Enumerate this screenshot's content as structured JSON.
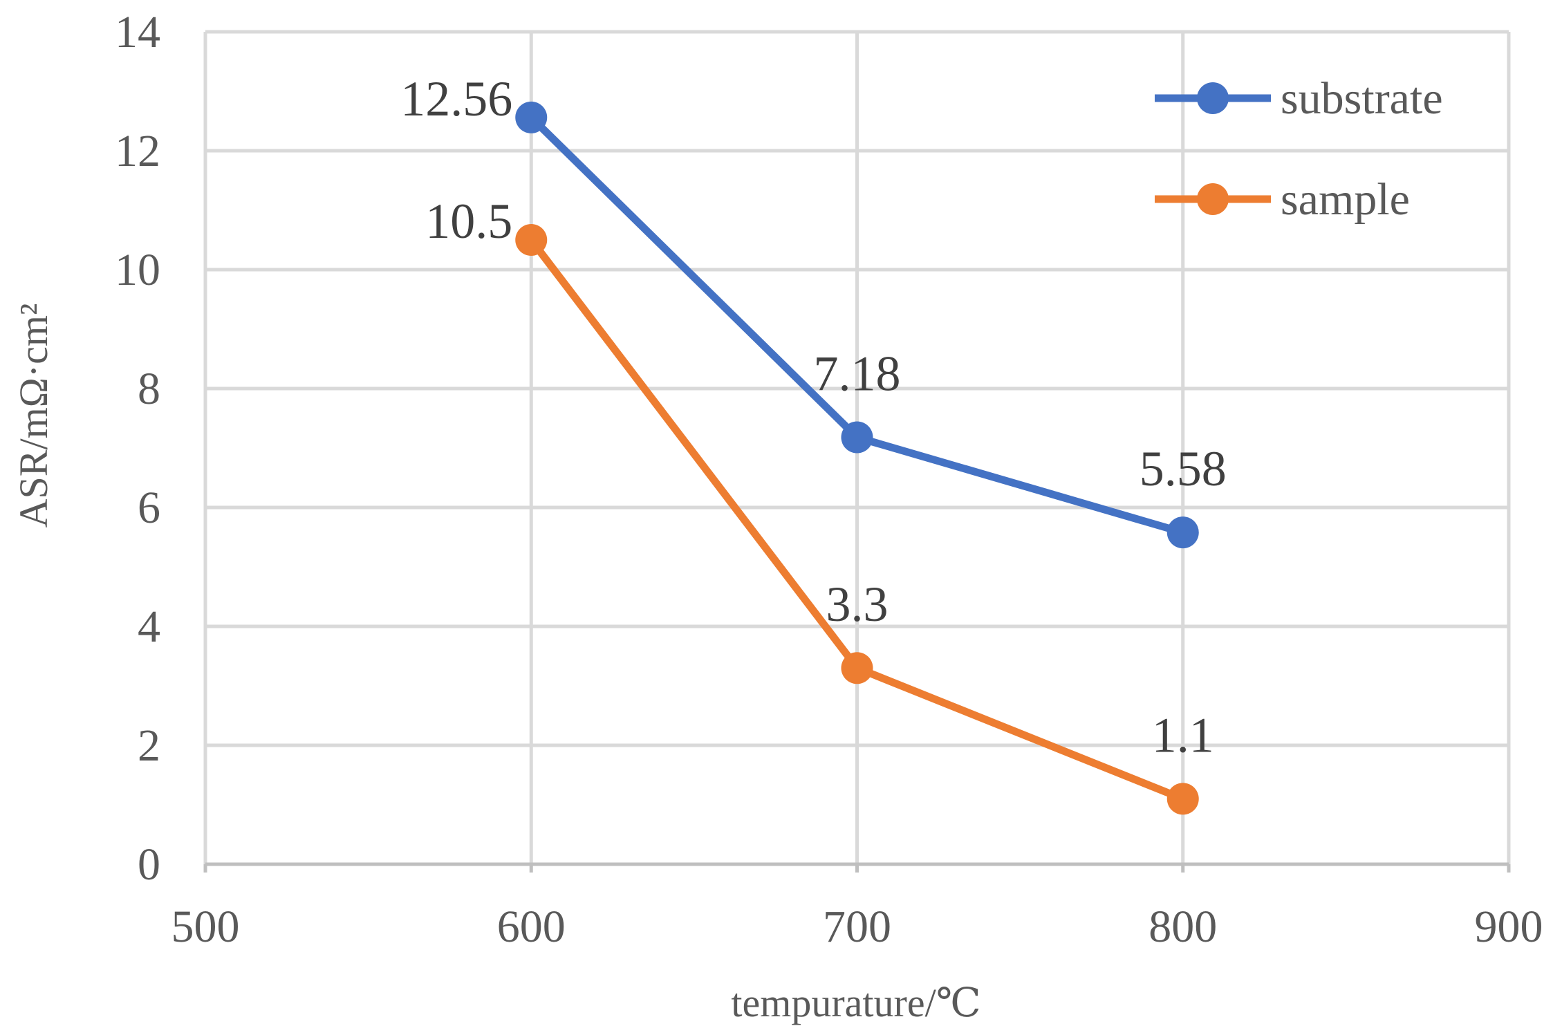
{
  "chart_data": {
    "type": "scatter",
    "title": "",
    "xlabel": "tempurature/℃",
    "ylabel": "ASR/mΩ·cm²",
    "xlim": [
      500,
      900
    ],
    "ylim": [
      0,
      14
    ],
    "xticks": [
      500,
      600,
      700,
      800,
      900
    ],
    "yticks": [
      0,
      2,
      4,
      6,
      8,
      10,
      12,
      14
    ],
    "grid": true,
    "legend_position": "top-right",
    "series": [
      {
        "name": "substrate",
        "color": "#4472c4",
        "x": [
          600,
          700,
          800
        ],
        "values": [
          12.56,
          7.18,
          5.58
        ],
        "labels": [
          "12.56",
          "7.18",
          "5.58"
        ],
        "label_position": [
          "left",
          "above",
          "above"
        ]
      },
      {
        "name": "sample",
        "color": "#ed7d31",
        "x": [
          600,
          700,
          800
        ],
        "values": [
          10.5,
          3.3,
          1.1
        ],
        "labels": [
          "10.5",
          "3.3",
          "1.1"
        ],
        "label_position": [
          "left",
          "above",
          "above"
        ]
      }
    ]
  }
}
